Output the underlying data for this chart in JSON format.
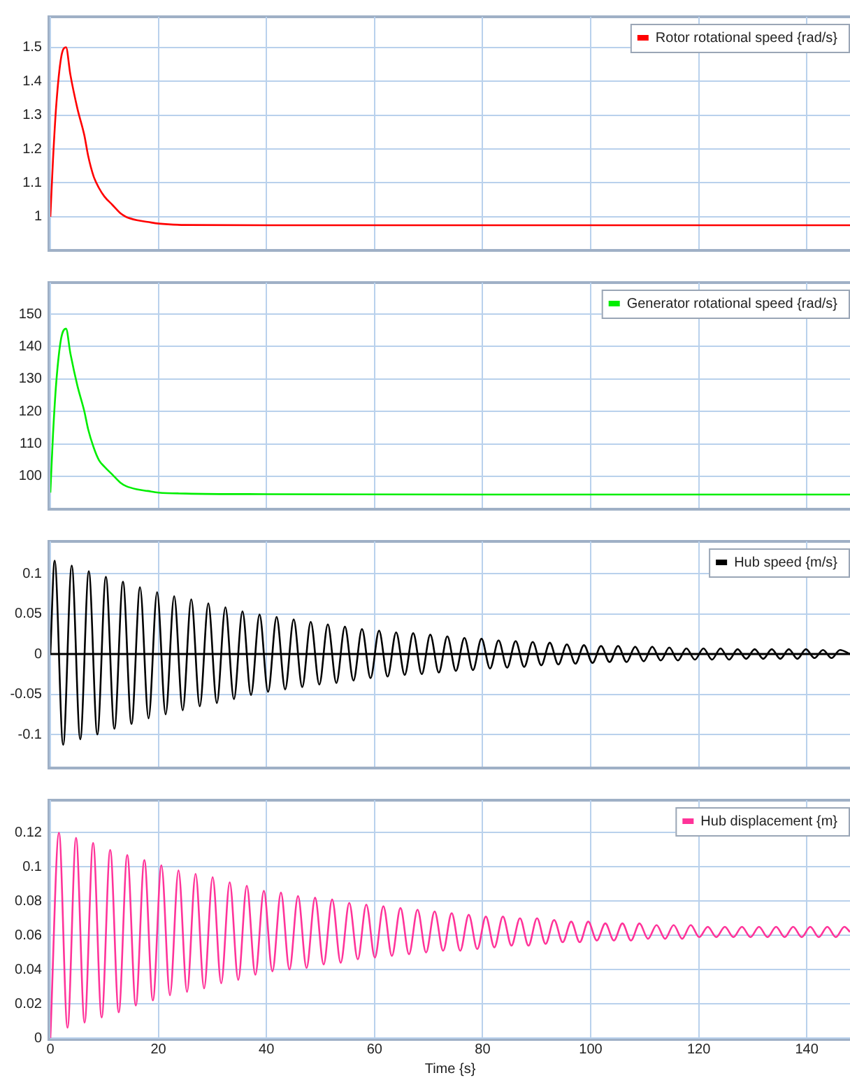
{
  "chart_data": [
    {
      "type": "line",
      "xlim": [
        0,
        148
      ],
      "xticks": [
        0,
        20,
        40,
        60,
        80,
        100,
        120,
        140
      ],
      "ylim": [
        0.905,
        1.59
      ],
      "yticks": [
        1,
        1.1,
        1.2,
        1.3,
        1.4,
        1.5
      ],
      "grid": true,
      "legend": "top right",
      "tick_labels": "y",
      "marker": "none",
      "series": [
        {
          "name": "Rotor rotational speed {rad/s}",
          "color": "#ff0000",
          "x": [
            0,
            0.5,
            1.1,
            2,
            2.9,
            3.7,
            5,
            6.3,
            7,
            8,
            9,
            10,
            11.5,
            13,
            14,
            16,
            18,
            20,
            25,
            40,
            80,
            148
          ],
          "values": [
            1,
            1.17,
            1.33,
            1.47,
            1.5,
            1.42,
            1.32,
            1.24,
            1.18,
            1.12,
            1.085,
            1.06,
            1.035,
            1.01,
            1,
            0.99,
            0.985,
            0.98,
            0.976,
            0.975,
            0.975,
            0.975
          ]
        }
      ]
    },
    {
      "type": "line",
      "xlim": [
        0,
        148
      ],
      "xticks": [
        0,
        20,
        40,
        60,
        80,
        100,
        120,
        140
      ],
      "ylim": [
        90.3,
        159.7
      ],
      "yticks": [
        100,
        110,
        120,
        130,
        140,
        150
      ],
      "grid": true,
      "legend": "top right",
      "tick_labels": "y",
      "marker": "none",
      "series": [
        {
          "name": "Generator rotational speed {rad/s}",
          "color": "#00ee00",
          "x": [
            0,
            0.5,
            1.1,
            2,
            2.9,
            3.7,
            5,
            6.3,
            7,
            8,
            9,
            10,
            11.5,
            13,
            14,
            16,
            18,
            20,
            25,
            40,
            80,
            148
          ],
          "values": [
            95,
            113,
            129,
            142.5,
            145.5,
            138,
            128,
            120,
            114.5,
            109,
            105,
            103,
            100.5,
            98,
            97,
            96,
            95.5,
            95,
            94.7,
            94.5,
            94.4,
            94.4
          ]
        }
      ]
    },
    {
      "type": "line",
      "xlim": [
        0,
        148
      ],
      "xticks": [
        0,
        20,
        40,
        60,
        80,
        100,
        120,
        140
      ],
      "ylim": [
        -0.14,
        0.14
      ],
      "yticks": [
        -0.1,
        -0.05,
        0,
        0.05,
        0.1
      ],
      "grid": true,
      "legend": "top right",
      "tick_labels": "y",
      "marker": "none",
      "ref_lines": [
        {
          "axis": "y",
          "value": 0,
          "color": "#000000"
        }
      ],
      "series": [
        {
          "name": "Hub speed {m/s}",
          "color": "#000000",
          "x": [
            0,
            0.8,
            2.38,
            3.96,
            5.54,
            7.12,
            8.7,
            10.28,
            11.86,
            13.44,
            15.02,
            16.6,
            18.18,
            19.76,
            21.34,
            22.92,
            24.5,
            26.08,
            27.66,
            29.24,
            30.82,
            32.4,
            33.98,
            35.56,
            37.14,
            38.72,
            40.3,
            41.88,
            43.46,
            45.04,
            46.62,
            48.2,
            49.78,
            51.36,
            52.94,
            54.52,
            56.1,
            57.68,
            59.26,
            60.84,
            62.42,
            64,
            65.58,
            67.16,
            68.74,
            70.32,
            71.9,
            73.48,
            75.06,
            76.64,
            78.22,
            79.8,
            81.38,
            82.96,
            84.54,
            86.12,
            87.7,
            89.28,
            90.86,
            92.44,
            94.02,
            95.6,
            97.18,
            98.76,
            100.34,
            101.92,
            103.5,
            105.08,
            106.66,
            108.24,
            109.82,
            111.4,
            112.98,
            114.56,
            116.14,
            117.72,
            119.3,
            120.88,
            122.46,
            124.04,
            125.62,
            127.2,
            128.78,
            130.36,
            131.94,
            133.52,
            135.1,
            136.68,
            138.26,
            139.84,
            141.42,
            143,
            144.58,
            146.16,
            148
          ],
          "values": [
            0,
            0.116,
            -0.113,
            0.11,
            -0.106,
            0.103,
            -0.1,
            0.096,
            -0.093,
            0.09,
            -0.087,
            0.083,
            -0.08,
            0.077,
            -0.075,
            0.072,
            -0.07,
            0.068,
            -0.065,
            0.063,
            -0.061,
            0.058,
            -0.056,
            0.053,
            -0.051,
            0.049,
            -0.047,
            0.046,
            -0.044,
            0.043,
            -0.041,
            0.04,
            -0.038,
            0.037,
            -0.036,
            0.034,
            -0.033,
            0.031,
            -0.03,
            0.029,
            -0.028,
            0.027,
            -0.026,
            0.026,
            -0.025,
            0.024,
            -0.023,
            0.022,
            -0.021,
            0.02,
            -0.02,
            0.019,
            -0.018,
            0.017,
            -0.017,
            0.016,
            -0.016,
            0.015,
            -0.014,
            0.014,
            -0.013,
            0.012,
            -0.012,
            0.011,
            -0.011,
            0.01,
            -0.01,
            0.01,
            -0.01,
            0.009,
            -0.009,
            0.009,
            -0.008,
            0.008,
            -0.008,
            0.007,
            -0.007,
            0.007,
            -0.007,
            0.007,
            -0.007,
            0.006,
            -0.006,
            0.006,
            -0.006,
            0.006,
            -0.006,
            0.006,
            -0.006,
            0.006,
            -0.005,
            0.005,
            -0.005,
            0.005,
            0
          ]
        }
      ]
    },
    {
      "type": "line",
      "xlabel": "Time {s}",
      "xlim": [
        0,
        148
      ],
      "xticks": [
        0,
        20,
        40,
        60,
        80,
        100,
        120,
        140
      ],
      "ylim": [
        0,
        0.139
      ],
      "yticks": [
        0,
        0.02,
        0.04,
        0.06,
        0.08,
        0.1,
        0.12
      ],
      "grid": true,
      "legend": "top right",
      "marker": "none",
      "series": [
        {
          "name": "Hub displacement {m}",
          "color": "#ff3399",
          "x": [
            0,
            1.6,
            3.18,
            4.76,
            6.34,
            7.92,
            9.5,
            11.08,
            12.66,
            14.24,
            15.82,
            17.4,
            18.98,
            20.56,
            22.14,
            23.72,
            25.3,
            26.88,
            28.46,
            30.04,
            31.62,
            33.2,
            34.78,
            36.36,
            37.94,
            39.52,
            41.1,
            42.68,
            44.26,
            45.84,
            47.42,
            49,
            50.58,
            52.16,
            53.74,
            55.32,
            56.9,
            58.48,
            60.06,
            61.64,
            63.22,
            64.8,
            66.38,
            67.96,
            69.54,
            71.12,
            72.7,
            74.28,
            75.86,
            77.44,
            79.02,
            80.6,
            82.18,
            83.76,
            85.34,
            86.92,
            88.5,
            90.08,
            91.66,
            93.24,
            94.82,
            96.4,
            97.98,
            99.56,
            101.14,
            102.72,
            104.3,
            105.88,
            107.46,
            109.04,
            110.62,
            112.2,
            113.78,
            115.36,
            116.94,
            118.52,
            120.1,
            121.68,
            123.26,
            124.84,
            126.42,
            128,
            129.58,
            131.16,
            132.74,
            134.32,
            135.9,
            137.48,
            139.06,
            140.64,
            142.22,
            143.8,
            145.38,
            146.96,
            148
          ],
          "values": [
            0,
            0.12,
            0.006,
            0.117,
            0.009,
            0.114,
            0.012,
            0.11,
            0.015,
            0.107,
            0.019,
            0.104,
            0.022,
            0.101,
            0.025,
            0.098,
            0.027,
            0.096,
            0.029,
            0.094,
            0.032,
            0.091,
            0.034,
            0.089,
            0.037,
            0.086,
            0.039,
            0.085,
            0.04,
            0.083,
            0.041,
            0.082,
            0.043,
            0.081,
            0.044,
            0.079,
            0.046,
            0.078,
            0.047,
            0.077,
            0.048,
            0.076,
            0.049,
            0.075,
            0.05,
            0.074,
            0.051,
            0.073,
            0.051,
            0.072,
            0.052,
            0.071,
            0.053,
            0.071,
            0.054,
            0.07,
            0.054,
            0.07,
            0.055,
            0.069,
            0.056,
            0.068,
            0.056,
            0.068,
            0.057,
            0.067,
            0.057,
            0.067,
            0.057,
            0.067,
            0.058,
            0.066,
            0.058,
            0.066,
            0.058,
            0.066,
            0.059,
            0.065,
            0.059,
            0.065,
            0.059,
            0.065,
            0.059,
            0.065,
            0.059,
            0.065,
            0.059,
            0.065,
            0.059,
            0.065,
            0.059,
            0.065,
            0.059,
            0.065,
            0.062
          ]
        }
      ]
    }
  ]
}
